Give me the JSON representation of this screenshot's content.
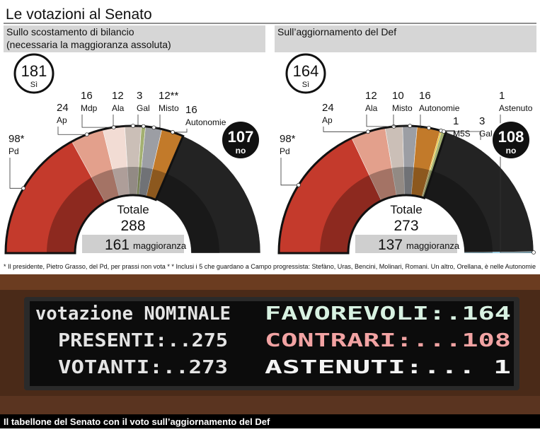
{
  "title": "Le votazioni al Senato",
  "chart_data": [
    {
      "type": "semicircle",
      "subtitle": [
        "Sullo scostamento di bilancio",
        "(necessaria la maggioranza assoluta)"
      ],
      "categories": [
        "Pd",
        "Ap",
        "Mdp",
        "Ala",
        "Gal",
        "Misto",
        "Autonomie",
        "no"
      ],
      "values": [
        98,
        24,
        16,
        12,
        3,
        12,
        16,
        107
      ],
      "value_labels": [
        "98*",
        "24",
        "16",
        "12",
        "3",
        "12**",
        "16",
        "107"
      ],
      "colors": [
        "#c43a2c",
        "#e3a08c",
        "#f2dcd4",
        "#cbbfb7",
        "#a3b071",
        "#9c9ea4",
        "#c27a2a",
        "#232323"
      ],
      "yes_total": 181,
      "yes_label": "Sì",
      "total_label": "Totale",
      "total": 288,
      "majority": 161,
      "majority_label": "maggioranza"
    },
    {
      "type": "semicircle",
      "subtitle": [
        "Sull’aggiornamento del Def"
      ],
      "categories": [
        "Pd",
        "Ap",
        "Ala",
        "Misto",
        "Autonomie",
        "M5S",
        "Gal",
        "no",
        "Astenuto"
      ],
      "values": [
        98,
        24,
        12,
        10,
        16,
        1,
        3,
        108,
        1
      ],
      "value_labels": [
        "98*",
        "24",
        "12",
        "10",
        "16",
        "1",
        "3",
        "108",
        "1"
      ],
      "colors": [
        "#c43a2c",
        "#e3a08c",
        "#cbbfb7",
        "#9c9ea4",
        "#c27a2a",
        "#e8c020",
        "#a3b071",
        "#232323",
        "#5ab4d8"
      ],
      "yes_total": 164,
      "yes_label": "Sì",
      "total_label": "Totale",
      "total": 273,
      "majority": 137,
      "majority_label": "maggioranza"
    }
  ],
  "footnote": "* Il presidente, Pietro Grasso, del Pd, per prassi non vota  * * Inclusi i 5 che guardano a Campo progressista: Stefàno, Uras, Bencini, Molinari, Romani. Un altro, Orellana, è nelle Autonomie",
  "scoreboard": {
    "rows": [
      [
        "votazione NOMINALE",
        "FAVOREVOLI:.164"
      ],
      [
        "PRESENTI:..275",
        "CONTRARI:...108"
      ],
      [
        "VOTANTI:..273",
        "ASTENUTI:...  1"
      ]
    ]
  },
  "caption": "Il tabellone del Senato con il voto sull’aggiornamento del Def"
}
